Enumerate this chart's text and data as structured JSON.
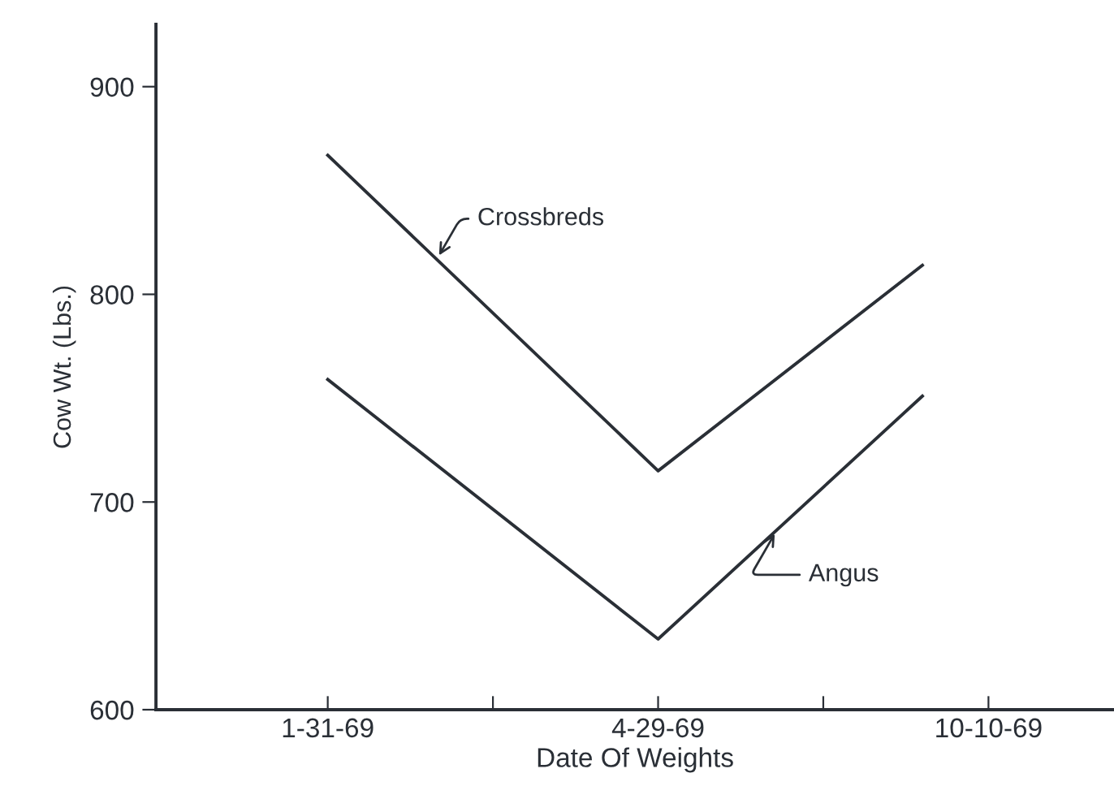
{
  "chart_data": {
    "type": "line",
    "xlabel": "Date Of Weights",
    "ylabel": "Cow Wt. (Lbs.)",
    "categories": [
      "1-31-69",
      null,
      null,
      null,
      null,
      "4-29-69",
      null,
      null,
      null,
      null,
      "10-10-69"
    ],
    "ylim": [
      600,
      930
    ],
    "yticks": [
      600,
      700,
      800,
      900
    ],
    "series": [
      {
        "name": "Crossbreds",
        "color": "#2a2f36",
        "values": [
          867,
          null,
          null,
          null,
          null,
          715,
          null,
          null,
          null,
          814,
          null
        ]
      },
      {
        "name": "Angus",
        "color": "#2a2f36",
        "values": [
          759,
          null,
          null,
          null,
          null,
          634,
          null,
          null,
          null,
          751,
          null
        ]
      }
    ],
    "grid": false,
    "legend": false,
    "marker": "none",
    "line_style": "solid"
  }
}
